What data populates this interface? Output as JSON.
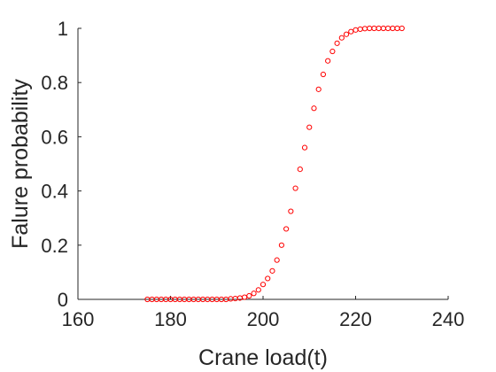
{
  "chart_data": {
    "type": "scatter",
    "xlabel": "Crane load(t)",
    "ylabel": "Falure probability",
    "xlim": [
      160,
      240
    ],
    "ylim": [
      0,
      1
    ],
    "xticks": [
      "160",
      "180",
      "200",
      "220",
      "240"
    ],
    "yticks": [
      "0",
      "0.2",
      "0.4",
      "0.6",
      "0.8",
      "1"
    ],
    "marker": "circle",
    "marker_color": "#ff0000",
    "axis_color": "#262626",
    "grid": false,
    "series": [
      {
        "x": [
          175,
          176,
          177,
          178,
          179,
          180,
          181,
          182,
          183,
          184,
          185,
          186,
          187,
          188,
          189,
          190,
          191,
          192,
          193,
          194,
          195,
          196,
          197,
          198,
          199,
          200,
          201,
          202,
          203,
          204,
          205,
          206,
          207,
          208,
          209,
          210,
          211,
          212,
          213,
          214,
          215,
          216,
          217,
          218,
          219,
          220,
          221,
          222,
          223,
          224,
          225,
          226,
          227,
          228,
          229,
          230
        ],
        "y": [
          0,
          0,
          0,
          0,
          0,
          0,
          0,
          0,
          0,
          0,
          0,
          0,
          0,
          0,
          0,
          0,
          0,
          0,
          0.002,
          0.003,
          0.005,
          0.008,
          0.013,
          0.022,
          0.035,
          0.055,
          0.077,
          0.105,
          0.145,
          0.2,
          0.26,
          0.325,
          0.41,
          0.48,
          0.56,
          0.635,
          0.705,
          0.775,
          0.83,
          0.88,
          0.915,
          0.945,
          0.965,
          0.978,
          0.988,
          0.994,
          0.997,
          0.999,
          1,
          1,
          1,
          1,
          1,
          1,
          1,
          1
        ]
      }
    ]
  }
}
